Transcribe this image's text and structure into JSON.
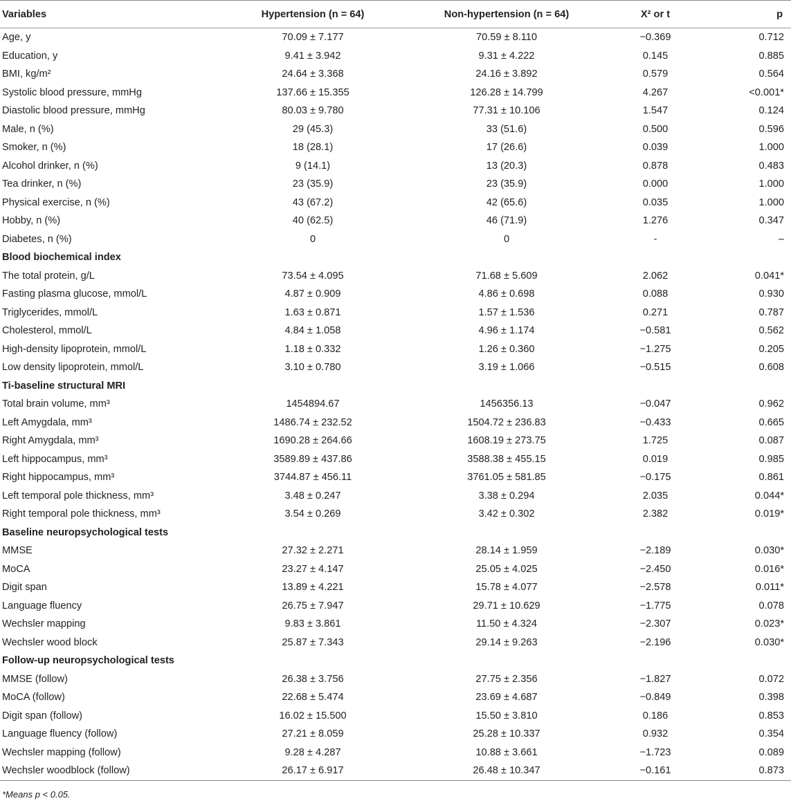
{
  "table": {
    "headers": {
      "variables": "Variables",
      "hypertension": "Hypertension (n = 64)",
      "non_hypertension": "Non-hypertension (n = 64)",
      "statistic": "X² or t",
      "p": "p"
    },
    "rows": [
      {
        "type": "data",
        "label": "Age, y",
        "hyp": "70.09 ± 7.177",
        "non": "70.59 ± 8.110",
        "stat": "−0.369",
        "p": "0.712"
      },
      {
        "type": "data",
        "label": "Education, y",
        "hyp": "9.41 ± 3.942",
        "non": "9.31 ± 4.222",
        "stat": "0.145",
        "p": "0.885"
      },
      {
        "type": "data",
        "label": "BMI, kg/m²",
        "hyp": "24.64 ± 3.368",
        "non": "24.16 ± 3.892",
        "stat": "0.579",
        "p": "0.564"
      },
      {
        "type": "data",
        "label": "Systolic blood pressure, mmHg",
        "hyp": "137.66 ± 15.355",
        "non": "126.28 ± 14.799",
        "stat": "4.267",
        "p": "<0.001*"
      },
      {
        "type": "data",
        "label": "Diastolic blood pressure, mmHg",
        "hyp": "80.03 ± 9.780",
        "non": "77.31 ± 10.106",
        "stat": "1.547",
        "p": "0.124"
      },
      {
        "type": "data",
        "label": "Male, n (%)",
        "hyp": "29 (45.3)",
        "non": "33 (51.6)",
        "stat": "0.500",
        "p": "0.596"
      },
      {
        "type": "data",
        "label": "Smoker, n (%)",
        "hyp": "18 (28.1)",
        "non": "17 (26.6)",
        "stat": "0.039",
        "p": "1.000"
      },
      {
        "type": "data",
        "label": "Alcohol drinker, n (%)",
        "hyp": "9 (14.1)",
        "non": "13 (20.3)",
        "stat": "0.878",
        "p": "0.483"
      },
      {
        "type": "data",
        "label": "Tea drinker, n (%)",
        "hyp": "23 (35.9)",
        "non": "23 (35.9)",
        "stat": "0.000",
        "p": "1.000"
      },
      {
        "type": "data",
        "label": "Physical exercise, n (%)",
        "hyp": "43 (67.2)",
        "non": "42 (65.6)",
        "stat": "0.035",
        "p": "1.000"
      },
      {
        "type": "data",
        "label": "Hobby, n (%)",
        "hyp": "40 (62.5)",
        "non": "46 (71.9)",
        "stat": "1.276",
        "p": "0.347"
      },
      {
        "type": "data",
        "label": "Diabetes, n (%)",
        "hyp": "0",
        "non": "0",
        "stat": "-",
        "p": "–"
      },
      {
        "type": "section",
        "label": "Blood biochemical index"
      },
      {
        "type": "data",
        "label": "The total protein, g/L",
        "hyp": "73.54 ± 4.095",
        "non": "71.68 ± 5.609",
        "stat": "2.062",
        "p": "0.041*"
      },
      {
        "type": "data",
        "label": "Fasting plasma glucose, mmol/L",
        "hyp": "4.87 ± 0.909",
        "non": "4.86 ± 0.698",
        "stat": "0.088",
        "p": "0.930"
      },
      {
        "type": "data",
        "label": "Triglycerides, mmol/L",
        "hyp": "1.63 ± 0.871",
        "non": "1.57 ± 1.536",
        "stat": "0.271",
        "p": "0.787"
      },
      {
        "type": "data",
        "label": "Cholesterol, mmol/L",
        "hyp": "4.84 ± 1.058",
        "non": "4.96 ± 1.174",
        "stat": "−0.581",
        "p": "0.562"
      },
      {
        "type": "data",
        "label": "High-density lipoprotein, mmol/L",
        "hyp": "1.18 ± 0.332",
        "non": "1.26 ± 0.360",
        "stat": "−1.275",
        "p": "0.205"
      },
      {
        "type": "data",
        "label": "Low density lipoprotein, mmol/L",
        "hyp": "3.10 ± 0.780",
        "non": "3.19 ± 1.066",
        "stat": "−0.515",
        "p": "0.608"
      },
      {
        "type": "section",
        "label": "Ti-baseline structural MRI"
      },
      {
        "type": "data",
        "label": "Total brain volume, mm³",
        "hyp": "1454894.67",
        "non": "1456356.13",
        "stat": "−0.047",
        "p": "0.962"
      },
      {
        "type": "data",
        "label": "Left Amygdala, mm³",
        "hyp": "1486.74 ± 232.52",
        "non": "1504.72 ± 236.83",
        "stat": "−0.433",
        "p": "0.665"
      },
      {
        "type": "data",
        "label": "Right Amygdala, mm³",
        "hyp": "1690.28 ± 264.66",
        "non": "1608.19 ± 273.75",
        "stat": "1.725",
        "p": "0.087"
      },
      {
        "type": "data",
        "label": "Left hippocampus, mm³",
        "hyp": "3589.89 ± 437.86",
        "non": "3588.38 ± 455.15",
        "stat": "0.019",
        "p": "0.985"
      },
      {
        "type": "data",
        "label": "Right hippocampus, mm³",
        "hyp": "3744.87 ± 456.11",
        "non": "3761.05 ± 581.85",
        "stat": "−0.175",
        "p": "0.861"
      },
      {
        "type": "data",
        "label": "Left temporal pole thickness, mm³",
        "hyp": "3.48 ± 0.247",
        "non": "3.38 ± 0.294",
        "stat": "2.035",
        "p": "0.044*"
      },
      {
        "type": "data",
        "label": "Right temporal pole thickness, mm³",
        "hyp": "3.54 ± 0.269",
        "non": "3.42 ± 0.302",
        "stat": "2.382",
        "p": "0.019*"
      },
      {
        "type": "section",
        "label": "Baseline neuropsychological tests"
      },
      {
        "type": "data",
        "label": "MMSE",
        "hyp": "27.32 ± 2.271",
        "non": "28.14 ± 1.959",
        "stat": "−2.189",
        "p": "0.030*"
      },
      {
        "type": "data",
        "label": "MoCA",
        "hyp": "23.27 ± 4.147",
        "non": "25.05 ± 4.025",
        "stat": "−2.450",
        "p": "0.016*"
      },
      {
        "type": "data",
        "label": "Digit span",
        "hyp": "13.89 ± 4.221",
        "non": "15.78 ± 4.077",
        "stat": "−2.578",
        "p": "0.011*"
      },
      {
        "type": "data",
        "label": "Language fluency",
        "hyp": "26.75 ± 7.947",
        "non": "29.71 ± 10.629",
        "stat": "−1.775",
        "p": "0.078"
      },
      {
        "type": "data",
        "label": "Wechsler mapping",
        "hyp": "9.83 ± 3.861",
        "non": "11.50 ± 4.324",
        "stat": "−2.307",
        "p": "0.023*"
      },
      {
        "type": "data",
        "label": "Wechsler wood block",
        "hyp": "25.87 ± 7.343",
        "non": "29.14 ± 9.263",
        "stat": "−2.196",
        "p": "0.030*"
      },
      {
        "type": "section",
        "label": "Follow-up neuropsychological tests"
      },
      {
        "type": "data",
        "label": "MMSE (follow)",
        "hyp": "26.38 ± 3.756",
        "non": "27.75 ± 2.356",
        "stat": "−1.827",
        "p": "0.072"
      },
      {
        "type": "data",
        "label": "MoCA (follow)",
        "hyp": "22.68 ± 5.474",
        "non": "23.69 ± 4.687",
        "stat": "−0.849",
        "p": "0.398"
      },
      {
        "type": "data",
        "label": "Digit span (follow)",
        "hyp": "16.02 ± 15.500",
        "non": "15.50 ± 3.810",
        "stat": "0.186",
        "p": "0.853"
      },
      {
        "type": "data",
        "label": "Language fluency (follow)",
        "hyp": "27.21 ± 8.059",
        "non": "25.28 ± 10.337",
        "stat": "0.932",
        "p": "0.354"
      },
      {
        "type": "data",
        "label": "Wechsler mapping (follow)",
        "hyp": "9.28 ± 4.287",
        "non": "10.88 ± 3.661",
        "stat": "−1.723",
        "p": "0.089"
      },
      {
        "type": "data",
        "label": "Wechsler woodblock (follow)",
        "hyp": "26.17 ± 6.917",
        "non": "26.48 ± 10.347",
        "stat": "−0.161",
        "p": "0.873"
      }
    ]
  },
  "footnote": "*Means p < 0.05."
}
